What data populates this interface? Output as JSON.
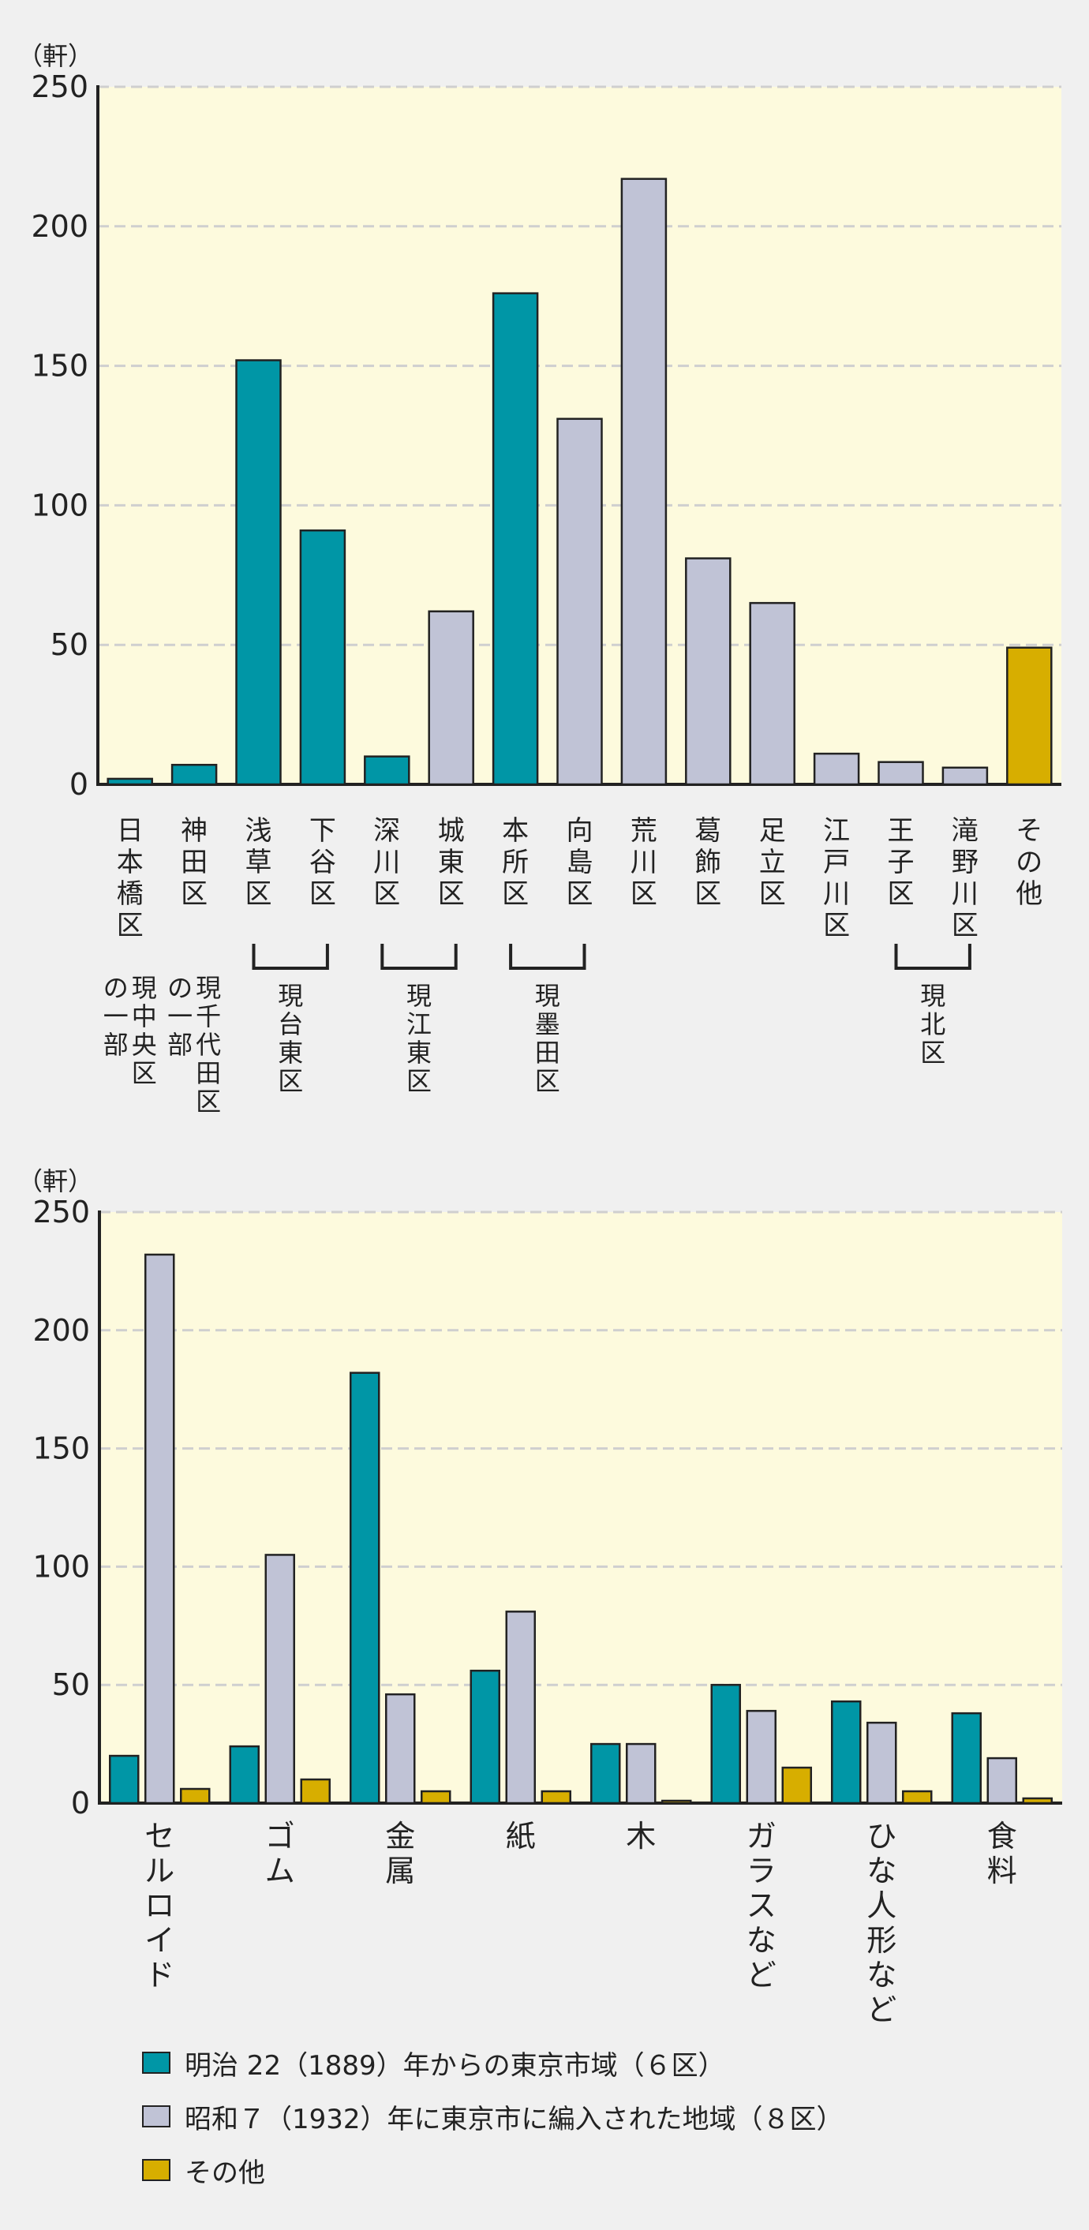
{
  "colors": {
    "series1": "#0096a6",
    "series2": "#c0c3d6",
    "series3": "#d7ae00",
    "plot_bg": "#fdfadd",
    "page_bg": "#f0f0f0"
  },
  "legend": [
    {
      "label": "明治 22（1889）年からの東京市域（６区）",
      "color": "#0096a6"
    },
    {
      "label": "昭和７（1932）年に東京市に編入された地域（８区）",
      "color": "#c0c3d6"
    },
    {
      "label": "その他",
      "color": "#d7ae00"
    }
  ],
  "chart_data": [
    {
      "type": "bar",
      "ylabel": "（軒）",
      "ylim": [
        0,
        250
      ],
      "yticks": [
        0,
        50,
        100,
        150,
        200,
        250
      ],
      "grid": true,
      "categories": [
        "日本橋区",
        "神田区",
        "浅草区",
        "下谷区",
        "深川区",
        "城東区",
        "本所区",
        "向島区",
        "荒川区",
        "葛飾区",
        "足立区",
        "江戸川区",
        "王子区",
        "滝野川区",
        "その他"
      ],
      "values": [
        2,
        7,
        152,
        91,
        10,
        62,
        176,
        131,
        217,
        81,
        65,
        11,
        8,
        6,
        49
      ],
      "groups": [
        "明治",
        "明治",
        "明治",
        "明治",
        "明治",
        "昭和",
        "明治",
        "昭和",
        "昭和",
        "昭和",
        "昭和",
        "昭和",
        "昭和",
        "昭和",
        "その他"
      ],
      "annotations": [
        {
          "text": "現中央区の一部",
          "under": [
            0
          ]
        },
        {
          "text": "現千代田区の一部",
          "under": [
            1
          ]
        },
        {
          "text": "現台東区",
          "under": [
            2,
            3
          ]
        },
        {
          "text": "現江東区",
          "under": [
            4,
            5
          ]
        },
        {
          "text": "現墨田区",
          "under": [
            6,
            7
          ]
        },
        {
          "text": "現北区",
          "under": [
            12,
            13
          ]
        }
      ]
    },
    {
      "type": "bar",
      "ylabel": "（軒）",
      "ylim": [
        0,
        250
      ],
      "yticks": [
        0,
        50,
        100,
        150,
        200,
        250
      ],
      "grid": true,
      "categories": [
        "セルロイド",
        "ゴム",
        "金属",
        "紙",
        "木",
        "ガラスなど",
        "ひな人形など",
        "食料"
      ],
      "series": [
        {
          "name": "明治 22（1889）年からの東京市域（６区）",
          "values": [
            20,
            24,
            182,
            56,
            25,
            50,
            43,
            38
          ]
        },
        {
          "name": "昭和７（1932）年に東京市に編入された地域（８区）",
          "values": [
            232,
            105,
            46,
            81,
            25,
            39,
            34,
            19
          ]
        },
        {
          "name": "その他",
          "values": [
            6,
            10,
            5,
            5,
            1,
            15,
            5,
            2
          ]
        }
      ]
    }
  ]
}
